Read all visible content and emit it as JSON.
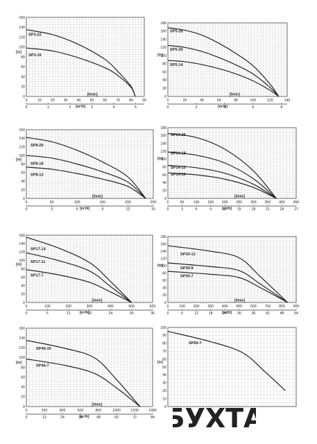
{
  "chart_data": [
    {
      "type": "line",
      "ylabel": "[m]",
      "yticks": [
        0,
        20,
        40,
        60,
        80,
        100,
        120,
        140,
        160
      ],
      "ylim": [
        0,
        160
      ],
      "x_flow_label": "[l/min]",
      "x_flow_ticks": [
        0,
        10,
        20,
        30,
        40,
        50,
        60,
        70,
        80,
        90
      ],
      "x_flow_lim": [
        0,
        90
      ],
      "x_m3_label": "[m³/h]",
      "x_m3_ticks": [
        0,
        1,
        2,
        3,
        4,
        5
      ],
      "x_m3_max": 5.4,
      "series": [
        {
          "name": "SP3-22",
          "x": [
            0,
            20,
            40,
            60,
            70,
            80,
            83
          ],
          "y": [
            135,
            125,
            105,
            75,
            50,
            20,
            0
          ]
        },
        {
          "name": "SP3-16",
          "x": [
            0,
            20,
            40,
            60,
            70,
            80,
            83
          ],
          "y": [
            98,
            92,
            78,
            58,
            42,
            18,
            0
          ]
        }
      ]
    },
    {
      "type": "line",
      "ylabel": "[m]",
      "yticks": [
        0,
        20,
        40,
        60,
        80,
        100,
        120,
        140,
        160,
        180
      ],
      "ylim": [
        0,
        180
      ],
      "x_flow_label": "[l/min]",
      "x_flow_ticks": [
        0,
        20,
        40,
        60,
        80,
        100,
        120,
        140
      ],
      "x_flow_lim": [
        0,
        140
      ],
      "x_m3_label": "[m³/h]",
      "x_m3_ticks": [
        0,
        2,
        4,
        6,
        8
      ],
      "x_m3_max": 8.4,
      "series": [
        {
          "name": "SP5-28",
          "x": [
            0,
            20,
            40,
            60,
            80,
            100,
            120,
            130
          ],
          "y": [
            168,
            162,
            150,
            130,
            105,
            75,
            30,
            0
          ]
        },
        {
          "name": "SP5-20",
          "x": [
            0,
            20,
            40,
            60,
            80,
            100,
            120,
            130
          ],
          "y": [
            125,
            120,
            110,
            95,
            77,
            55,
            22,
            0
          ]
        },
        {
          "name": "SP5-14",
          "x": [
            0,
            20,
            40,
            60,
            80,
            100,
            120,
            130
          ],
          "y": [
            88,
            85,
            78,
            68,
            55,
            38,
            15,
            0
          ]
        }
      ]
    },
    {
      "type": "line",
      "ylabel": "[m]",
      "yticks": [
        0,
        20,
        40,
        60,
        80,
        100,
        120,
        140,
        160
      ],
      "ylim": [
        0,
        160
      ],
      "x_flow_label": "[l/min]",
      "x_flow_ticks": [
        0,
        50,
        100,
        150,
        200,
        250
      ],
      "x_flow_lim": [
        0,
        250
      ],
      "x_m3_label": "[m³/h]",
      "x_m3_ticks": [
        0,
        3,
        6,
        9,
        12,
        15
      ],
      "x_m3_max": 15,
      "series": [
        {
          "name": "SP8-25",
          "x": [
            0,
            50,
            100,
            150,
            200,
            235
          ],
          "y": [
            142,
            132,
            112,
            85,
            50,
            0
          ]
        },
        {
          "name": "SP8-18",
          "x": [
            0,
            50,
            100,
            150,
            200,
            235
          ],
          "y": [
            100,
            94,
            80,
            62,
            38,
            0
          ]
        },
        {
          "name": "SP8-13",
          "x": [
            0,
            50,
            100,
            150,
            200,
            235
          ],
          "y": [
            73,
            68,
            58,
            45,
            28,
            0
          ]
        }
      ]
    },
    {
      "type": "line",
      "ylabel": "[m]",
      "yticks": [
        0,
        20,
        40,
        60,
        80,
        100,
        120,
        140,
        160,
        180
      ],
      "ylim": [
        0,
        180
      ],
      "x_flow_label": "[l/min]",
      "x_flow_ticks": [
        0,
        50,
        100,
        150,
        200,
        250,
        300,
        350,
        400,
        450
      ],
      "x_flow_lim": [
        0,
        450
      ],
      "x_m3_label": "[m³/h]",
      "x_m3_ticks": [
        0,
        3,
        6,
        9,
        12,
        15,
        18,
        21,
        24,
        27
      ],
      "x_m3_max": 27,
      "series": [
        {
          "name": "SP14-25",
          "x": [
            0,
            100,
            200,
            300,
            380
          ],
          "y": [
            165,
            155,
            125,
            70,
            0
          ]
        },
        {
          "name": "SP14-18",
          "x": [
            0,
            100,
            200,
            300,
            380
          ],
          "y": [
            118,
            110,
            90,
            50,
            0
          ]
        },
        {
          "name": "SP14-13",
          "x": [
            0,
            100,
            200,
            300,
            380
          ],
          "y": [
            84,
            78,
            64,
            36,
            0
          ]
        },
        {
          "name": "SP14-10",
          "x": [
            0,
            100,
            200,
            300,
            380
          ],
          "y": [
            65,
            60,
            49,
            28,
            0
          ]
        }
      ]
    },
    {
      "type": "line",
      "ylabel": "[m]",
      "yticks": [
        0,
        20,
        40,
        60,
        80,
        100,
        120,
        140,
        160
      ],
      "ylim": [
        0,
        160
      ],
      "x_flow_label": "[l/min]",
      "x_flow_ticks": [
        0,
        100,
        200,
        300,
        400,
        500,
        600
      ],
      "x_flow_lim": [
        0,
        600
      ],
      "x_m3_label": "[m³/h]",
      "x_m3_ticks": [
        0,
        6,
        12,
        18,
        24,
        30,
        36
      ],
      "x_m3_max": 36,
      "series": [
        {
          "name": "SP17-14",
          "x": [
            0,
            150,
            300,
            400,
            500
          ],
          "y": [
            155,
            130,
            95,
            50,
            0
          ]
        },
        {
          "name": "SP17-11",
          "x": [
            0,
            150,
            300,
            400,
            500
          ],
          "y": [
            118,
            100,
            75,
            38,
            0
          ]
        },
        {
          "name": "SP17-7",
          "x": [
            0,
            150,
            300,
            400,
            500
          ],
          "y": [
            78,
            66,
            48,
            25,
            0
          ]
        }
      ]
    },
    {
      "type": "line",
      "ylabel": "[m]",
      "yticks": [
        0,
        20,
        40,
        60,
        80,
        100,
        120,
        140,
        160,
        180
      ],
      "ylim": [
        0,
        180
      ],
      "x_flow_label": "[l/min]",
      "x_flow_ticks": [
        0,
        100,
        200,
        300,
        400,
        500,
        600,
        700,
        800,
        900
      ],
      "x_flow_lim": [
        0,
        900
      ],
      "x_m3_label": "[m³/h]",
      "x_m3_ticks": [
        0,
        6,
        12,
        18,
        24,
        30,
        36,
        42,
        48,
        54
      ],
      "x_m3_max": 54,
      "series": [
        {
          "name": "SP30-13",
          "x": [
            0,
            300,
            500,
            650,
            840
          ],
          "y": [
            155,
            140,
            122,
            70,
            0
          ]
        },
        {
          "name": "SP30-9",
          "x": [
            0,
            300,
            500,
            650,
            840
          ],
          "y": [
            108,
            98,
            87,
            50,
            0
          ]
        },
        {
          "name": "SP30-7",
          "x": [
            0,
            300,
            500,
            650,
            840
          ],
          "y": [
            85,
            77,
            68,
            40,
            0
          ]
        }
      ]
    },
    {
      "type": "line",
      "ylabel": "[m]",
      "yticks": [
        0,
        20,
        40,
        60,
        80,
        100,
        120,
        140,
        160
      ],
      "ylim": [
        0,
        160
      ],
      "x_flow_label": "[l/min]",
      "x_flow_ticks": [
        0,
        200,
        400,
        600,
        800,
        1000,
        1200,
        1400
      ],
      "x_flow_lim": [
        0,
        1400
      ],
      "x_m3_label": "[m³/h]",
      "x_m3_ticks": [
        0,
        12,
        24,
        36,
        48,
        60,
        72,
        84
      ],
      "x_m3_max": 84,
      "series": [
        {
          "name": "SP46-10",
          "x": [
            0,
            400,
            750,
            1000,
            1260
          ],
          "y": [
            135,
            120,
            100,
            55,
            0
          ]
        },
        {
          "name": "SP46-7",
          "x": [
            0,
            400,
            750,
            1000,
            1260
          ],
          "y": [
            97,
            85,
            68,
            38,
            0
          ]
        }
      ]
    },
    {
      "type": "line",
      "ylabel": "[m]",
      "yticks": [
        0,
        10,
        20,
        30,
        40,
        50,
        60,
        70,
        80,
        90,
        100
      ],
      "ylim": [
        0,
        100
      ],
      "x_flow_lim": [
        0,
        1200
      ],
      "series": [
        {
          "name": "SP60-7",
          "x": [
            0,
            400,
            700,
            900,
            1100
          ],
          "y": [
            95,
            82,
            68,
            45,
            20
          ]
        }
      ]
    }
  ],
  "logo": {
    "text": "БУХТА",
    "color": "#d42a2a"
  }
}
